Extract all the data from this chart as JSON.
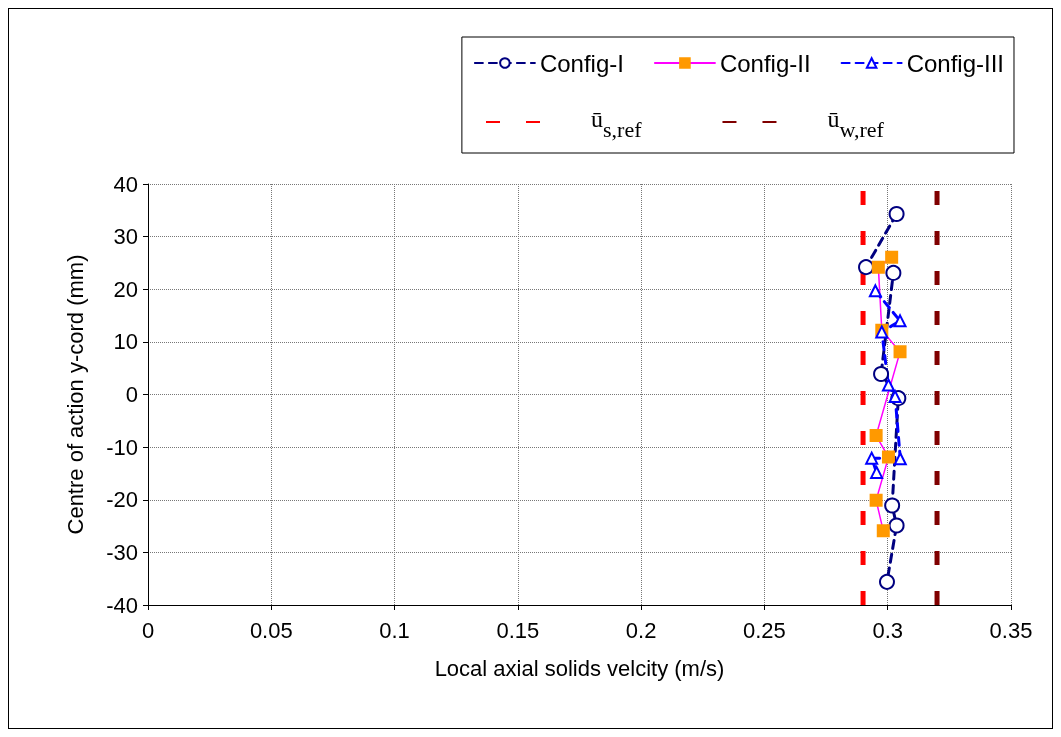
{
  "chart_data": {
    "type": "line",
    "xlabel": "Local axial solids velcity (m/s)",
    "ylabel": "Centre of action y-cord (mm)",
    "xlim": [
      0,
      0.35
    ],
    "xticks": [
      0,
      0.05,
      0.1,
      0.15,
      0.2,
      0.25,
      0.3,
      0.35
    ],
    "ylim": [
      -40,
      40
    ],
    "yticks": [
      -40,
      -30,
      -20,
      -10,
      0,
      10,
      20,
      30,
      40
    ],
    "grid": true,
    "legend": "top right",
    "series": [
      {
        "name": "Config-I",
        "color": "#000080",
        "marker": "circle",
        "line_style": "dashed",
        "x": [
          0.3036,
          0.2912,
          0.3023,
          0.2973,
          0.3043,
          0.3018,
          0.3036,
          0.2997
        ],
        "values": [
          34.3,
          24.2,
          23.1,
          3.9,
          -0.7,
          -21.1,
          -24.9,
          -35.6
        ]
      },
      {
        "name": "Config-II",
        "color": "#ff00ff",
        "marker": "square",
        "line_style": "solid",
        "x": [
          0.3016,
          0.2962,
          0.2976,
          0.305,
          0.2953,
          0.3003,
          0.2953,
          0.2982
        ],
        "values": [
          26.1,
          24.2,
          12.2,
          8.1,
          -7.8,
          -11.9,
          -20.1,
          -25.9
        ]
      },
      {
        "name": "Config-III",
        "color": "#0000ff",
        "marker": "triangle",
        "line_style": "dashed",
        "x": [
          0.295,
          0.305,
          0.2976,
          0.3003,
          0.303,
          0.3051,
          0.2935,
          0.2955
        ],
        "values": [
          19.7,
          14.0,
          11.9,
          1.8,
          -0.4,
          -12.2,
          -12.1,
          -14.8
        ]
      }
    ],
    "ref_lines": [
      {
        "axis": "x",
        "value": 0.29,
        "label": "ū$_{s,ref}$",
        "color": "#ff0000",
        "line_style": "dashed"
      },
      {
        "axis": "x",
        "value": 0.32,
        "label": "ū$_{w,ref}$",
        "color": "#800000",
        "line_style": "dashed"
      }
    ]
  }
}
